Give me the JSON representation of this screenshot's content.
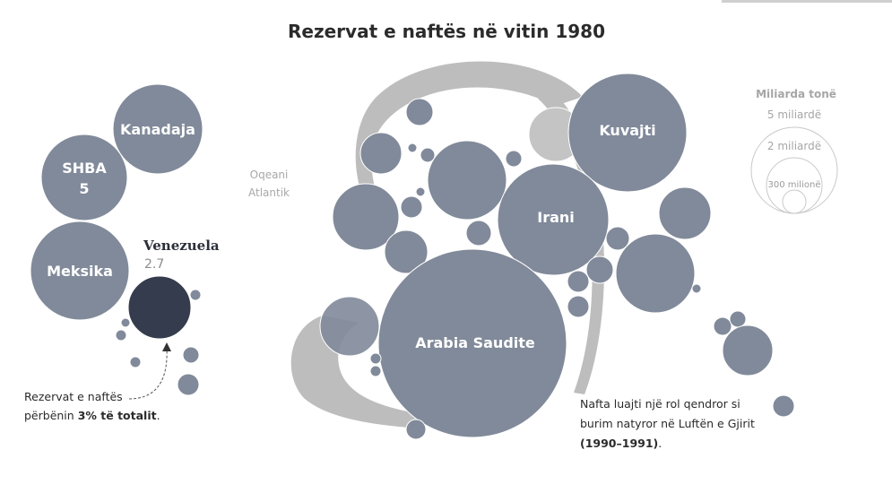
{
  "colors": {
    "bubble": "#818a9a",
    "highlight": "#343c4d",
    "map": "#bdbdbd",
    "legend": "#c9c9c9",
    "text": "#2b2b2b"
  },
  "chart_data": {
    "type": "bubble",
    "title": "Rezervat e naftës në vitin 1980",
    "unit": "Miliarda tonë",
    "labels": {
      "kanadaja": "Kanadaja",
      "shba": "SHBA",
      "shba_value": "5",
      "meksika": "Meksika",
      "venezuela": "Venezuela",
      "venezuela_value": "2.7",
      "kuvajti": "Kuvajti",
      "irani": "Irani",
      "arabia": "Arabia Saudite"
    },
    "values_billion_tonnes": {
      "Venezuela": 2.7,
      "SHBA": 5
    },
    "map_label": [
      "Oqeani",
      "Atlantik"
    ],
    "legend": {
      "title": "Miliarda tonë",
      "items": [
        "5 miliardë",
        "2 miliardë",
        "300 milionë"
      ]
    },
    "annotations": {
      "venezuela_note": {
        "line1": "Rezervat e naftës",
        "line2_pre": "përbënin ",
        "line2_bold": "3% të totalit",
        "line2_post": "."
      },
      "gulf_note": {
        "line1": "Nafta luajti një rol qendror si",
        "line2": "burim natyror në Luftën e Gjirit",
        "line3_bold": "(1990–1991)",
        "line3_post": "."
      }
    }
  }
}
